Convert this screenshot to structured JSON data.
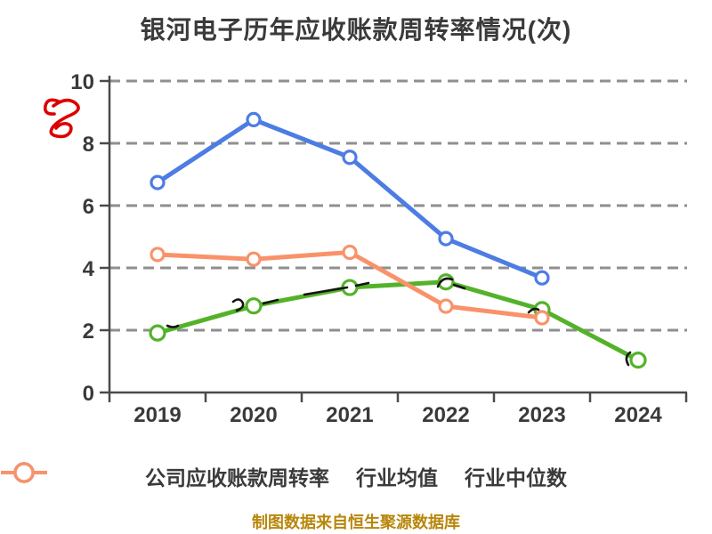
{
  "title": "银河电子历年应收账款周转率情况(次)",
  "footer_note": "制图数据来自恒生聚源数据库",
  "colors": {
    "text": "#3a3a3a",
    "grid": "#8f8f8f",
    "footer": "#b8860b",
    "annotation_red": "#dd0000",
    "company": "#54b22a",
    "industry_avg": "#4d7ce2",
    "industry_median": "#f9926a",
    "marker_fill": "#ffffff"
  },
  "chart_data": {
    "type": "line",
    "title": "银河电子历年应收账款周转率情况(次)",
    "categories": [
      "2019",
      "2020",
      "2021",
      "2022",
      "2023",
      "2024"
    ],
    "series": [
      {
        "name": "公司应收账款周转率",
        "color": "#54b22a",
        "marker_r": 8,
        "values": [
          1.91,
          2.78,
          3.37,
          3.55,
          2.66,
          1.04
        ]
      },
      {
        "name": "行业均值",
        "color": "#4d7ce2",
        "marker_r": 7,
        "values": [
          6.74,
          8.76,
          7.55,
          4.94,
          3.68,
          null
        ]
      },
      {
        "name": "行业中位数",
        "color": "#f9926a",
        "marker_r": 7,
        "values": [
          4.43,
          4.28,
          4.5,
          2.77,
          2.4,
          null
        ]
      }
    ],
    "xlabel": "",
    "ylabel": "",
    "ylim": [
      0,
      10
    ],
    "y_ticks": [
      0,
      2,
      4,
      6,
      8,
      10
    ],
    "grid": "dashed-horizontal",
    "legend_position": "bottom",
    "marker_style": "white-filled-circle"
  }
}
